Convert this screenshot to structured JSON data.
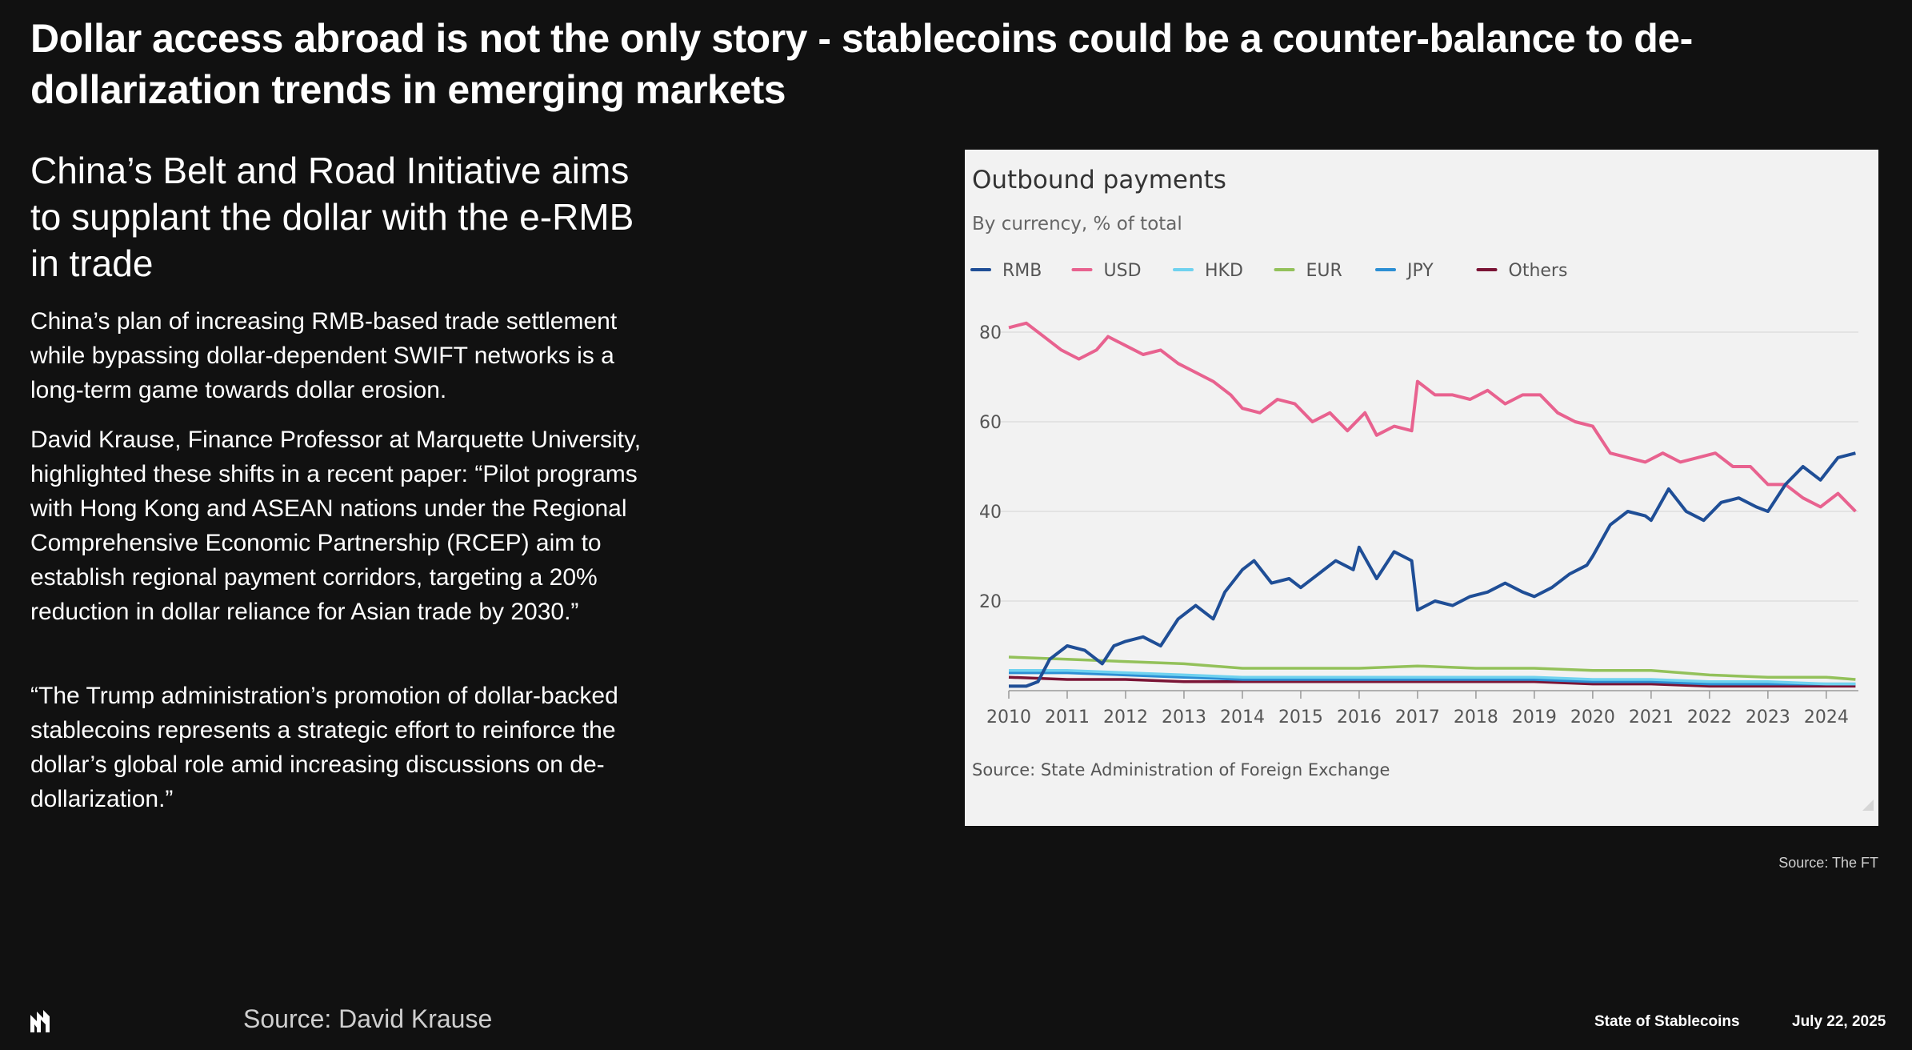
{
  "page": {
    "title": "Dollar access abroad is not the only story - stablecoins could be a counter-balance to de-dollarization trends in emerging markets",
    "subhead": "China’s Belt and Road Initiative aims to supplant the dollar with the e-RMB in trade",
    "paragraphs": [
      "China’s plan of increasing RMB-based trade settlement while bypassing dollar-dependent SWIFT networks is a long-term game towards dollar erosion.",
      "David Krause, Finance Professor at Marquette University, highlighted these shifts in a recent paper: “Pilot programs with Hong Kong and ASEAN nations under the Regional Comprehensive Economic Partnership (RCEP) aim to establish regional payment corridors, targeting a 20% reduction in dollar reliance for Asian trade by 2030.”",
      "“The Trump administration’s promotion of dollar-backed stablecoins represents a strategic effort to reinforce the dollar’s global role amid increasing discussions on de-dollarization.”"
    ],
    "chart_credit": "Source: The FT",
    "footer": {
      "source": "Source: David Krause",
      "report": "State of Stablecoins",
      "date": "July 22, 2025",
      "logo_icon": "brand-logo-icon"
    }
  },
  "chart_data": {
    "type": "line",
    "title": "Outbound payments",
    "subtitle": "By currency, % of total",
    "source": "Source: State Administration of Foreign Exchange",
    "xlabel": "",
    "ylabel": "",
    "xlim": [
      2010,
      2024.55
    ],
    "ylim": [
      0,
      85
    ],
    "yticks": [
      20,
      40,
      60,
      80
    ],
    "xticks": [
      "2010",
      "2011",
      "2012",
      "2013",
      "2014",
      "2015",
      "2016",
      "2017",
      "2018",
      "2019",
      "2020",
      "2021",
      "2022",
      "2023",
      "2024"
    ],
    "grid": true,
    "legend_position": "top-left",
    "series": [
      {
        "name": "RMB",
        "color": "#1f4e96",
        "x": [
          2010,
          2010.3,
          2010.5,
          2010.7,
          2011,
          2011.3,
          2011.6,
          2011.8,
          2012,
          2012.3,
          2012.6,
          2012.9,
          2013.2,
          2013.5,
          2013.7,
          2014,
          2014.2,
          2014.5,
          2014.8,
          2015,
          2015.3,
          2015.6,
          2015.9,
          2016,
          2016.3,
          2016.6,
          2016.9,
          2017,
          2017.3,
          2017.6,
          2017.9,
          2018.2,
          2018.5,
          2018.8,
          2019,
          2019.3,
          2019.6,
          2019.9,
          2020,
          2020.3,
          2020.6,
          2020.9,
          2021,
          2021.3,
          2021.6,
          2021.9,
          2022.2,
          2022.5,
          2022.8,
          2023,
          2023.3,
          2023.6,
          2023.9,
          2024.2,
          2024.5
        ],
        "values": [
          1,
          1,
          2,
          7,
          10,
          9,
          6,
          10,
          11,
          12,
          10,
          16,
          19,
          16,
          22,
          27,
          29,
          24,
          25,
          23,
          26,
          29,
          27,
          32,
          25,
          31,
          29,
          18,
          20,
          19,
          21,
          22,
          24,
          22,
          21,
          23,
          26,
          28,
          30,
          37,
          40,
          39,
          38,
          45,
          40,
          38,
          42,
          43,
          41,
          40,
          46,
          50,
          47,
          52,
          53
        ]
      },
      {
        "name": "USD",
        "color": "#e8628f",
        "x": [
          2010,
          2010.3,
          2010.6,
          2010.9,
          2011.2,
          2011.5,
          2011.7,
          2012,
          2012.3,
          2012.6,
          2012.9,
          2013.2,
          2013.5,
          2013.8,
          2014,
          2014.3,
          2014.6,
          2014.9,
          2015.2,
          2015.5,
          2015.8,
          2016.1,
          2016.3,
          2016.6,
          2016.9,
          2017,
          2017.3,
          2017.6,
          2017.9,
          2018.2,
          2018.5,
          2018.8,
          2019.1,
          2019.4,
          2019.7,
          2020,
          2020.3,
          2020.6,
          2020.9,
          2021.2,
          2021.5,
          2021.8,
          2022.1,
          2022.4,
          2022.7,
          2023,
          2023.3,
          2023.6,
          2023.9,
          2024.2,
          2024.5
        ],
        "values": [
          81,
          82,
          79,
          76,
          74,
          76,
          79,
          77,
          75,
          76,
          73,
          71,
          69,
          66,
          63,
          62,
          65,
          64,
          60,
          62,
          58,
          62,
          57,
          59,
          58,
          69,
          66,
          66,
          65,
          67,
          64,
          66,
          66,
          62,
          60,
          59,
          53,
          52,
          51,
          53,
          51,
          52,
          53,
          50,
          50,
          46,
          46,
          43,
          41,
          44,
          40
        ]
      },
      {
        "name": "HKD",
        "color": "#6fd2ef",
        "x": [
          2010,
          2011,
          2012,
          2013,
          2014,
          2015,
          2016,
          2017,
          2018,
          2019,
          2020,
          2021,
          2022,
          2023,
          2024,
          2024.5
        ],
        "values": [
          4.5,
          4.5,
          4,
          3.5,
          3,
          3,
          3,
          3,
          3,
          3,
          2.5,
          2.5,
          2,
          2,
          1.5,
          1.5
        ]
      },
      {
        "name": "EUR",
        "color": "#93c15a",
        "x": [
          2010,
          2011,
          2012,
          2013,
          2014,
          2015,
          2016,
          2017,
          2018,
          2019,
          2020,
          2021,
          2022,
          2023,
          2024,
          2024.5
        ],
        "values": [
          7.5,
          7,
          6.5,
          6,
          5,
          5,
          5,
          5.5,
          5,
          5,
          4.5,
          4.5,
          3.5,
          3,
          3,
          2.5
        ]
      },
      {
        "name": "JPY",
        "color": "#2c8fd4",
        "x": [
          2010,
          2011,
          2012,
          2013,
          2014,
          2015,
          2016,
          2017,
          2018,
          2019,
          2020,
          2021,
          2022,
          2023,
          2024,
          2024.5
        ],
        "values": [
          4,
          4,
          3.5,
          3,
          2.5,
          2.5,
          2.5,
          2.5,
          2.5,
          2.5,
          2,
          2,
          1.5,
          1.5,
          1.5,
          1.5
        ]
      },
      {
        "name": "Others",
        "color": "#7a1435",
        "x": [
          2010,
          2011,
          2012,
          2013,
          2014,
          2015,
          2016,
          2017,
          2018,
          2019,
          2020,
          2021,
          2022,
          2023,
          2024,
          2024.5
        ],
        "values": [
          3,
          2.5,
          2.5,
          2,
          2,
          2,
          2,
          2,
          2,
          2,
          1.5,
          1.5,
          1,
          1,
          1,
          1
        ]
      }
    ]
  }
}
